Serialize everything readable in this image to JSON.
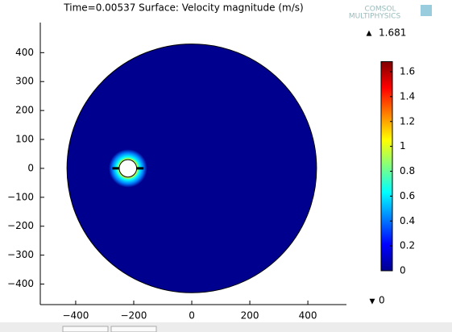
{
  "chart_data": {
    "type": "surface",
    "title": "Time=0.00537  Surface: Velocity magnitude (m/s)",
    "watermark": [
      "COMSOL",
      "MULTIPHYSICS"
    ],
    "xlim": [
      -522,
      533
    ],
    "ylim": [
      -471,
      504
    ],
    "xticks": [
      {
        "value": -400,
        "label": "−400"
      },
      {
        "value": -200,
        "label": "−200"
      },
      0,
      200,
      400
    ],
    "yticks": [
      {
        "value": -400,
        "label": "−400"
      },
      {
        "value": -300,
        "label": "−300"
      },
      {
        "value": -200,
        "label": "−200"
      },
      {
        "value": -100,
        "label": "−100"
      },
      0,
      100,
      200,
      300,
      400
    ],
    "domain": {
      "center": [
        0,
        0
      ],
      "radius": 430,
      "color": "#00008f"
    },
    "obstacle": {
      "center": [
        -220,
        0
      ],
      "radius": 30
    },
    "colorbar": {
      "lim": [
        0,
        1.681
      ],
      "ticks": [
        0,
        0.2,
        0.4,
        0.6,
        0.8,
        1,
        1.2,
        1.4,
        1.6
      ],
      "max": 1.681,
      "min": 0,
      "colors": [
        "#00008f",
        "#0000ff",
        "#0080ff",
        "#00ffff",
        "#80ff80",
        "#ffff00",
        "#ff8000",
        "#ff0000",
        "#800000"
      ]
    }
  }
}
